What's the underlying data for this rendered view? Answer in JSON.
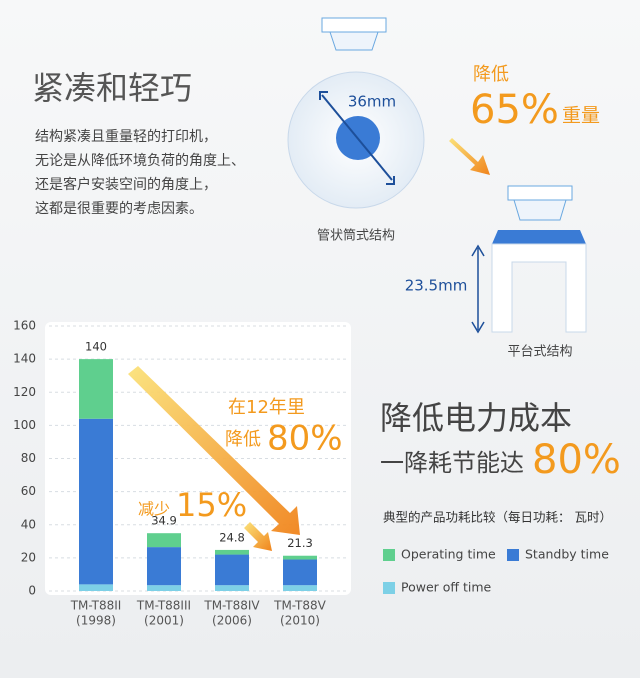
{
  "header": {
    "title": "紧凑和轻巧",
    "lines": [
      "结构紧凑且重量轻的打印机，",
      "无论是从降低环境负荷的角度上、",
      "还是客户安装空间的角度上，",
      "这都是很重要的考虑因素。"
    ]
  },
  "diagram": {
    "diameter": "36mm",
    "tube_label": "管状筒式结构",
    "reduce": "降低",
    "percent": "65%",
    "weight": "重量",
    "height": "23.5mm",
    "flat_label": "平台式结构"
  },
  "power": {
    "title": "降低电力成本",
    "subtitle": "一降耗节能达",
    "percent": "80%",
    "caption": "典型的产品功耗比较（每日功耗： 瓦时）"
  },
  "annotations": {
    "years": "在12年里",
    "reduce": "降低",
    "percent": "80%",
    "less": "减少",
    "less_percent": "15%"
  },
  "chart_data": {
    "type": "stacked_bar",
    "categories": [
      "TM-T88II",
      "TM-T88III",
      "TM-T88IV",
      "TM-T88V"
    ],
    "category_years": [
      "(1998)",
      "(2001)",
      "(2006)",
      "(2010)"
    ],
    "totals": [
      140,
      34.9,
      24.8,
      21.3
    ],
    "series": [
      {
        "name": "Operating time",
        "color": "#5fcf8e",
        "values": [
          36,
          8.4,
          2.8,
          2.3
        ]
      },
      {
        "name": "Standby time",
        "color": "#3a7bd5",
        "values": [
          100,
          23,
          18.5,
          15.5
        ]
      },
      {
        "name": "Power off time",
        "color": "#7dd0e6",
        "values": [
          4,
          3.5,
          3.5,
          3.5
        ]
      }
    ],
    "ylim": [
      0,
      160
    ],
    "yticks": [
      0,
      20,
      40,
      60,
      80,
      100,
      120,
      140,
      160
    ],
    "grid": true
  }
}
